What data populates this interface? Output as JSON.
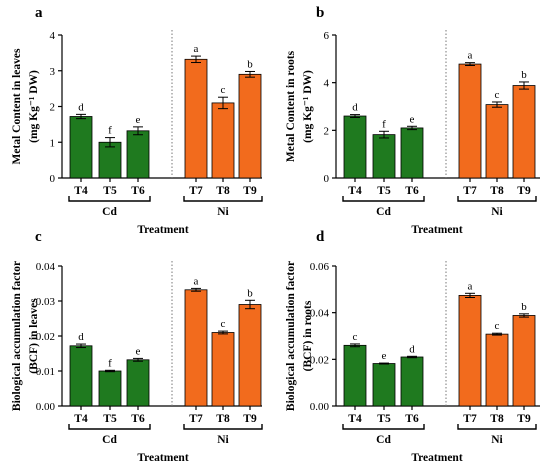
{
  "colors": {
    "Cd": "#1f7a1f",
    "Ni": "#f26b1d"
  },
  "chart_data": [
    {
      "panel": "a",
      "type": "bar",
      "ylabel": "Metal Content in leaves",
      "ylabel_unit": "(mg Kg⁻¹ DW)",
      "xlabel": "Treatment",
      "ylim": [
        0,
        4
      ],
      "yticks": [
        "0",
        "1",
        "2",
        "3",
        "4"
      ],
      "categories": [
        "T4",
        "T5",
        "T6",
        "T7",
        "T8",
        "T9"
      ],
      "groups": [
        {
          "name": "Cd",
          "categories": [
            "T4",
            "T5",
            "T6"
          ]
        },
        {
          "name": "Ni",
          "categories": [
            "T7",
            "T8",
            "T9"
          ]
        }
      ],
      "values": [
        1.72,
        1.0,
        1.32,
        3.32,
        2.1,
        2.9
      ],
      "errors": [
        0.06,
        0.13,
        0.11,
        0.09,
        0.16,
        0.08
      ],
      "letters": [
        "d",
        "f",
        "e",
        "a",
        "c",
        "b"
      ]
    },
    {
      "panel": "b",
      "type": "bar",
      "ylabel": "Metal Content in roots",
      "ylabel_unit": "(mg Kg⁻¹ DW)",
      "xlabel": "Treatment",
      "ylim": [
        0,
        6
      ],
      "yticks": [
        "0",
        "2",
        "4",
        "6"
      ],
      "categories": [
        "T4",
        "T5",
        "T6",
        "T7",
        "T8",
        "T9"
      ],
      "groups": [
        {
          "name": "Cd",
          "categories": [
            "T4",
            "T5",
            "T6"
          ]
        },
        {
          "name": "Ni",
          "categories": [
            "T7",
            "T8",
            "T9"
          ]
        }
      ],
      "values": [
        2.6,
        1.82,
        2.1,
        4.78,
        3.08,
        3.88
      ],
      "errors": [
        0.06,
        0.14,
        0.07,
        0.06,
        0.11,
        0.15
      ],
      "letters": [
        "d",
        "f",
        "e",
        "a",
        "c",
        "b"
      ]
    },
    {
      "panel": "c",
      "type": "bar",
      "ylabel": "Biological accumulation factor",
      "ylabel_unit": "(BCF) in leaves",
      "xlabel": "Treatment",
      "ylim": [
        0,
        0.04
      ],
      "yticks": [
        "0.00",
        "0.01",
        "0.02",
        "0.03",
        "0.04"
      ],
      "categories": [
        "T4",
        "T5",
        "T6",
        "T7",
        "T8",
        "T9"
      ],
      "groups": [
        {
          "name": "Cd",
          "categories": [
            "T4",
            "T5",
            "T6"
          ]
        },
        {
          "name": "Ni",
          "categories": [
            "T7",
            "T8",
            "T9"
          ]
        }
      ],
      "values": [
        0.0172,
        0.01,
        0.0132,
        0.0332,
        0.021,
        0.029
      ],
      "errors": [
        0.0005,
        0.0002,
        0.0004,
        0.0004,
        0.0004,
        0.0012
      ],
      "letters": [
        "d",
        "f",
        "e",
        "a",
        "c",
        "b"
      ]
    },
    {
      "panel": "d",
      "type": "bar",
      "ylabel": "Biological accumulation factor",
      "ylabel_unit": "(BCF) in roots",
      "xlabel": "Treatment",
      "ylim": [
        0,
        0.06
      ],
      "yticks": [
        "0.00",
        "0.02",
        "0.04",
        "0.06"
      ],
      "categories": [
        "T4",
        "T5",
        "T6",
        "T7",
        "T8",
        "T9"
      ],
      "groups": [
        {
          "name": "Cd",
          "categories": [
            "T4",
            "T5",
            "T6"
          ]
        },
        {
          "name": "Ni",
          "categories": [
            "T7",
            "T8",
            "T9"
          ]
        }
      ],
      "values": [
        0.026,
        0.0182,
        0.021,
        0.0474,
        0.0308,
        0.0388
      ],
      "errors": [
        0.0006,
        0.0002,
        0.0003,
        0.0009,
        0.0004,
        0.0007
      ],
      "letters": [
        "c",
        "e",
        "d",
        "a",
        "c",
        "b"
      ]
    }
  ]
}
